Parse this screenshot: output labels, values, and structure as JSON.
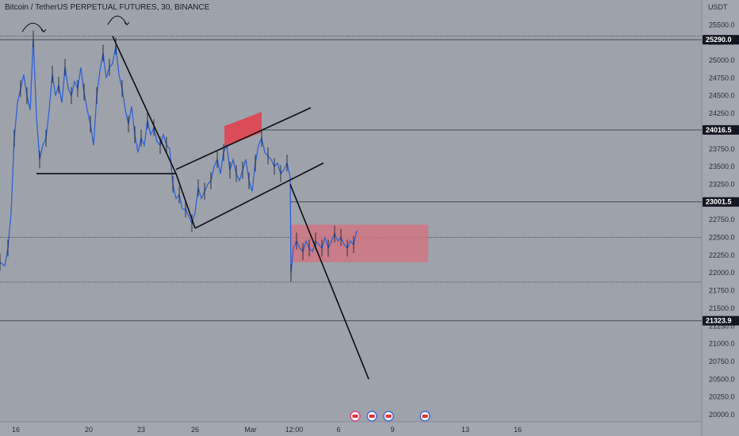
{
  "chart_data": {
    "type": "line",
    "title": "Bitcoin / TetherUS PERPETUAL FUTURES, 30, BINANCE",
    "unit": "USDT",
    "y_ticks": [
      20000.0,
      20250.0,
      20500.0,
      20750.0,
      21000.0,
      21250.0,
      21500.0,
      21750.0,
      22000.0,
      22250.0,
      22500.0,
      22750.0,
      23000.0,
      23250.0,
      23500.0,
      23750.0,
      24000.0,
      24250.0,
      24500.0,
      24750.0,
      25000.0,
      25250.0,
      25500.0
    ],
    "y_tick_labels": [
      "20000.0",
      "20250.0",
      "20500.0",
      "20750.0",
      "21000.0",
      "21250.0",
      "21500.0",
      "21750.0",
      "22000.0",
      "22250.0",
      "22500.0",
      "22750.0",
      "23000.0",
      "23250.0",
      "23500.0",
      "23750.0",
      "24000.0",
      "24250.0",
      "24500.0",
      "24750.0",
      "25000.0",
      "25250.0",
      "25500.0"
    ],
    "ylim": [
      19900,
      25850
    ],
    "x_tick_labels": [
      "16",
      "20",
      "23",
      "26",
      "Mar",
      "12:00",
      "6",
      "9",
      "13",
      "16"
    ],
    "x_tick_index": [
      20,
      112,
      178,
      246,
      316,
      371,
      427,
      495,
      587,
      653
    ],
    "series": [
      {
        "color": "#2d62d6",
        "x": [
          0,
          6,
          10,
          14,
          18,
          22,
          26,
          30,
          34,
          38,
          42,
          46,
          50,
          54,
          58,
          62,
          66,
          70,
          74,
          78,
          82,
          86,
          90,
          94,
          98,
          102,
          106,
          110,
          114,
          118,
          122,
          126,
          130,
          134,
          138,
          142,
          146,
          150,
          154,
          158,
          162,
          166,
          170,
          174,
          178,
          182,
          186,
          190,
          194,
          198,
          202,
          206,
          210,
          214,
          218,
          222,
          226,
          230,
          234,
          238,
          242,
          246,
          250,
          254,
          258,
          262,
          266,
          270,
          274,
          278,
          282,
          286,
          290,
          294,
          298,
          302,
          306,
          310,
          314,
          318,
          322,
          326,
          330,
          334,
          338,
          342,
          346,
          350,
          354,
          358,
          362,
          366,
          367,
          370,
          374,
          378,
          382,
          386,
          390,
          394,
          398,
          402,
          406,
          410,
          414,
          418,
          422,
          426,
          430,
          434,
          438,
          442,
          446,
          450
        ],
        "values": [
          22150,
          22100,
          22350,
          22850,
          23900,
          24400,
          24600,
          24800,
          24500,
          24300,
          25300,
          24200,
          23600,
          23800,
          23900,
          24300,
          24800,
          24500,
          24650,
          24400,
          24900,
          24600,
          24500,
          24700,
          24600,
          24900,
          24550,
          24300,
          24100,
          23800,
          24500,
          24850,
          25100,
          24750,
          24900,
          24950,
          25200,
          24800,
          24600,
          24300,
          24100,
          24350,
          23950,
          23700,
          23900,
          23800,
          24150,
          23950,
          24050,
          23850,
          23800,
          23950,
          23800,
          23750,
          23250,
          23050,
          23100,
          22900,
          22900,
          22800,
          22700,
          22850,
          23200,
          23050,
          23150,
          23250,
          23300,
          23500,
          23600,
          23400,
          23700,
          23800,
          23450,
          23600,
          23400,
          23300,
          23450,
          23600,
          23300,
          23150,
          23550,
          23800,
          23900,
          23700,
          23650,
          23600,
          23500,
          23550,
          23400,
          23450,
          23550,
          23350,
          22000,
          22350,
          22450,
          22350,
          22300,
          22450,
          22350,
          22300,
          22450,
          22400,
          22350,
          22500,
          22350,
          22450,
          22550,
          22450,
          22500,
          22400,
          22350,
          22450,
          22400,
          22600
        ]
      }
    ],
    "price_tags": [
      {
        "value": 25290.0,
        "label": "25290.0"
      },
      {
        "value": 24016.5,
        "label": "24016.5"
      },
      {
        "value": 23001.5,
        "label": "23001.5"
      },
      {
        "value": 21323.9,
        "label": "21323.9"
      }
    ],
    "dotted_levels": [
      25340,
      22500,
      21870
    ],
    "drawings": {
      "trend_lines": [
        {
          "x1": 142,
          "y1": 25340,
          "x2": 222,
          "y2": 23400
        },
        {
          "x1": 46,
          "y1": 23400,
          "x2": 222,
          "y2": 23400
        },
        {
          "x1": 222,
          "y1": 23400,
          "x2": 246,
          "y2": 22630
        },
        {
          "x1": 222,
          "y1": 23460,
          "x2": 392,
          "y2": 24330
        },
        {
          "x1": 246,
          "y1": 22630,
          "x2": 408,
          "y2": 23550
        },
        {
          "x1": 366,
          "y1": 23250,
          "x2": 465,
          "y2": 20500
        }
      ],
      "zones": [
        {
          "x1": 283,
          "x2": 330,
          "low": 23780,
          "high": 24070,
          "slant": true,
          "color": "#e0424f"
        },
        {
          "x1": 366,
          "x2": 540,
          "low": 22150,
          "high": 22680,
          "slant": false,
          "color": "#d27480"
        }
      ],
      "arcs": [
        {
          "x1": 28,
          "x2": 55,
          "value": 25400
        },
        {
          "x1": 136,
          "x2": 160,
          "value": 25500
        }
      ]
    }
  }
}
